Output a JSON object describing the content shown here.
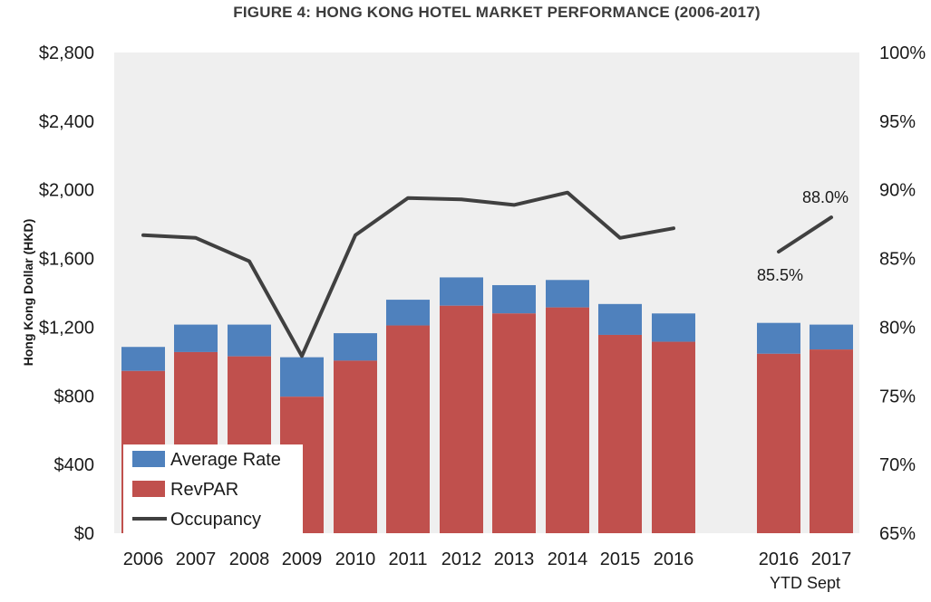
{
  "chart_data": {
    "type": "bar",
    "title": "FIGURE 4: HONG KONG HOTEL MARKET PERFORMANCE (2006-2017)",
    "ylabel": "Hong Kong Dollar (HKD)",
    "ylim": [
      0,
      2800
    ],
    "yticks": [
      "$0",
      "$400",
      "$800",
      "$1,200",
      "$1,600",
      "$2,000",
      "$2,400",
      "$2,800"
    ],
    "y2lim": [
      65,
      100
    ],
    "y2ticks": [
      "65%",
      "70%",
      "75%",
      "80%",
      "85%",
      "90%",
      "95%",
      "100%"
    ],
    "categories": [
      "2006",
      "2007",
      "2008",
      "2009",
      "2010",
      "2011",
      "2012",
      "2013",
      "2014",
      "2015",
      "2016",
      "2016",
      "2017"
    ],
    "x_sublabel": "YTD Sept",
    "grid": false,
    "background": "#efefef",
    "series": [
      {
        "name": "RevPAR",
        "color": "#c0504d",
        "values": [
          945,
          1055,
          1030,
          795,
          1005,
          1210,
          1325,
          1280,
          1315,
          1155,
          1115,
          1045,
          1070
        ]
      },
      {
        "name": "Average Rate",
        "color": "#4f81bd",
        "values": [
          1085,
          1215,
          1215,
          1025,
          1165,
          1360,
          1490,
          1445,
          1475,
          1335,
          1280,
          1225,
          1215
        ]
      },
      {
        "name": "Occupancy",
        "color": "#404040",
        "axis": "right",
        "segments": [
          {
            "categories": [
              0,
              1,
              2,
              3,
              4,
              5,
              6,
              7,
              8,
              9,
              10
            ],
            "values": [
              86.7,
              86.5,
              84.8,
              77.9,
              86.7,
              89.4,
              89.3,
              88.9,
              89.8,
              86.5,
              87.2
            ]
          },
          {
            "categories": [
              11,
              12
            ],
            "values": [
              85.5,
              88.0
            ]
          }
        ]
      }
    ],
    "annotations": [
      {
        "text": "85.5%",
        "category": 11,
        "value": 85.5
      },
      {
        "text": "88.0%",
        "category": 12,
        "value": 88.0
      }
    ],
    "legend": {
      "placement": "bottom-left",
      "entries": [
        {
          "label": "Average Rate",
          "kind": "box",
          "color": "#4f81bd"
        },
        {
          "label": "RevPAR",
          "kind": "box",
          "color": "#c0504d"
        },
        {
          "label": "Occupancy",
          "kind": "line",
          "color": "#404040"
        }
      ]
    }
  }
}
